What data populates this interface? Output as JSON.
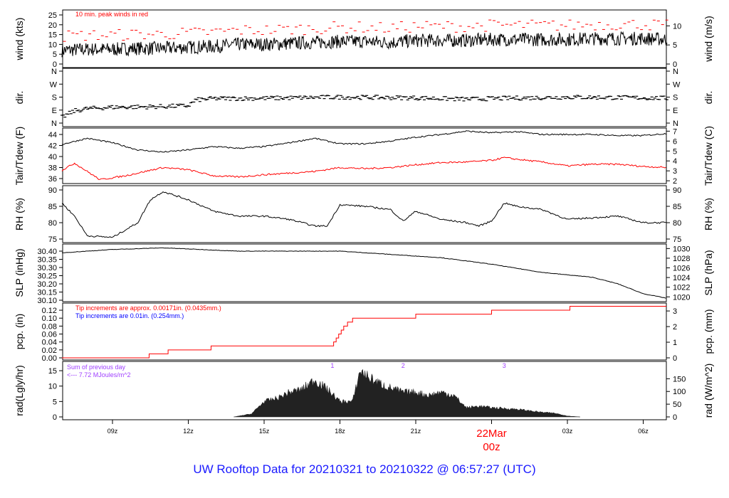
{
  "title": "UW Rooftop Data for 20210321  to  20210322 @ 06:57:27  (UTC)",
  "chart_data": [
    {
      "type": "line",
      "id": "wind",
      "ylabel": "wind (kts)",
      "ylabel_right": "wind (m/s)",
      "ylim": [
        0,
        27
      ],
      "yticks": [
        0,
        5,
        10,
        15,
        20,
        25
      ],
      "yticks_right": [
        0,
        5,
        10
      ],
      "annotation": "10 min. peak winds in red",
      "series": [
        {
          "color": "#000000",
          "hours": [
            7,
            8,
            9,
            10,
            11,
            12,
            13,
            14,
            15,
            16,
            17,
            18,
            19,
            20,
            21,
            22,
            23,
            24,
            25,
            26,
            27,
            28,
            29,
            30,
            31
          ],
          "values": [
            7,
            7.5,
            7.5,
            8,
            8,
            8.5,
            9,
            10,
            10,
            10.5,
            11,
            11.5,
            11.5,
            11,
            12,
            12,
            12,
            12.5,
            12.5,
            12.5,
            12.5,
            13,
            13,
            13,
            12.5
          ]
        },
        {
          "color": "#ff0000",
          "kind": "peak dashes",
          "offset_kts": 6
        }
      ]
    },
    {
      "type": "line",
      "id": "dir",
      "ylabel": "dir.",
      "ylabel_right": "dir.",
      "yticks": [
        "N",
        "E",
        "S",
        "W",
        "N"
      ],
      "ylim": [
        0,
        360
      ],
      "series": [
        {
          "color": "#000000",
          "hours": [
            7,
            7.5,
            8,
            9,
            10,
            11,
            12,
            12.3,
            13,
            15,
            18,
            21,
            23,
            24,
            27,
            30,
            31
          ],
          "values": [
            40,
            85,
            100,
            110,
            112,
            115,
            120,
            160,
            170,
            172,
            180,
            175,
            165,
            170,
            180,
            175,
            172
          ]
        }
      ]
    },
    {
      "type": "line",
      "id": "temp",
      "ylabel": "Tair/Tdew (F)",
      "ylabel_right": "Tair/Tdew (C)",
      "ylim": [
        35,
        45
      ],
      "yticks": [
        36,
        38,
        40,
        42,
        44
      ],
      "yticks_right": [
        2,
        3,
        4,
        5,
        6,
        7
      ],
      "series": [
        {
          "name": "Tair",
          "color": "#000000",
          "hours": [
            7,
            8,
            9,
            10,
            11,
            12,
            13,
            14,
            15,
            16,
            17,
            18,
            19,
            20,
            21,
            22,
            23,
            24,
            25,
            26,
            27,
            28,
            29,
            30,
            31
          ],
          "values": [
            42.2,
            43.3,
            42.5,
            41.2,
            40.8,
            41.2,
            41.8,
            41.5,
            41.8,
            42.5,
            43.3,
            42.3,
            42.3,
            42.8,
            43.5,
            44,
            44.6,
            44.3,
            44.5,
            44,
            44,
            44,
            43.8,
            43.8,
            44.2
          ]
        },
        {
          "name": "Tdew",
          "color": "#ff0000",
          "hours": [
            7,
            7.5,
            8.5,
            9.5,
            10.5,
            11,
            12,
            13,
            14,
            15,
            16,
            17,
            18,
            19,
            20,
            21,
            22,
            23,
            24,
            24.5,
            25,
            26,
            27,
            28,
            29,
            30,
            31
          ],
          "values": [
            37.5,
            38.8,
            35.8,
            36.5,
            37.5,
            38,
            37.6,
            36.5,
            36.3,
            36.7,
            37,
            37.3,
            38,
            37.8,
            38,
            38.5,
            38.9,
            39,
            39.3,
            39.8,
            39.5,
            39,
            38.3,
            38.6,
            38.6,
            38.2,
            38
          ]
        }
      ]
    },
    {
      "type": "line",
      "id": "rh",
      "ylabel": "RH (%)",
      "ylabel_right": "RH (%)",
      "ylim": [
        74,
        91
      ],
      "yticks": [
        75,
        80,
        85,
        90
      ],
      "series": [
        {
          "color": "#000000",
          "hours": [
            7,
            7.5,
            8,
            9,
            10,
            10.5,
            11,
            12,
            13,
            14,
            15,
            16,
            17,
            17.5,
            18,
            19,
            20,
            20.5,
            21,
            22,
            23,
            23.5,
            24,
            24.5,
            25,
            26,
            27,
            28,
            29,
            30,
            31
          ],
          "values": [
            86,
            82,
            76,
            75.5,
            80,
            87,
            89.5,
            87,
            83.5,
            82,
            82,
            81,
            79,
            79,
            85.5,
            85,
            84,
            80.5,
            83.5,
            81,
            80,
            79,
            80.5,
            86,
            85,
            84,
            81,
            81.5,
            82,
            80,
            80
          ]
        }
      ]
    },
    {
      "type": "line",
      "id": "slp",
      "ylabel": "SLP (inHg)",
      "ylabel_right": "SLP (hPa)",
      "ylim": [
        30.1,
        30.42
      ],
      "yticks": [
        30.1,
        30.15,
        30.2,
        30.25,
        30.3,
        30.35,
        30.4
      ],
      "yticks_right": [
        1020,
        1022,
        1024,
        1026,
        1028,
        1030
      ],
      "series": [
        {
          "color": "#000000",
          "hours": [
            7,
            9,
            11,
            14,
            18,
            20,
            22,
            24,
            26,
            28,
            29,
            30,
            31
          ],
          "values": [
            30.39,
            30.41,
            30.42,
            30.4,
            30.4,
            30.38,
            30.36,
            30.32,
            30.27,
            30.24,
            30.2,
            30.14,
            30.11
          ]
        }
      ]
    },
    {
      "type": "step",
      "id": "pcp",
      "ylabel": "pcp. (in)",
      "ylabel_right": "pcp. (mm)",
      "ylim": [
        0,
        0.13
      ],
      "yticks": [
        0,
        0.02,
        0.04,
        0.06,
        0.08,
        0.1,
        0.12
      ],
      "yticks_right": [
        0,
        1,
        2,
        3
      ],
      "annotations": [
        {
          "text": "Tip increments are approx. 0.00171in. (0.0435mm.)",
          "color": "#ff0000"
        },
        {
          "text": "Tip increments are 0.01in. (0.254mm.)",
          "color": "#0000ff"
        }
      ],
      "series": [
        {
          "color": "#ff0000",
          "hours": [
            7,
            10.45,
            11.2,
            12.9,
            17.75,
            17.85,
            17.95,
            18.05,
            18.15,
            18.3,
            18.5,
            21,
            24,
            27.1
          ],
          "values": [
            0,
            0.01,
            0.02,
            0.03,
            0.04,
            0.05,
            0.06,
            0.07,
            0.08,
            0.09,
            0.1,
            0.11,
            0.12,
            0.13
          ]
        }
      ]
    },
    {
      "type": "area",
      "id": "rad",
      "ylabel": "rad(Lgly/hr)",
      "ylabel_right": "rad (W/m^2)",
      "ylim": [
        0,
        17
      ],
      "yticks": [
        0,
        5,
        10,
        15
      ],
      "yticks_right": [
        0,
        50,
        100,
        150
      ],
      "annotations": [
        {
          "text": "Sum of previous day",
          "color": "#a040ff"
        },
        {
          "text": "<--- 7.72 MJoules/m^2",
          "color": "#a040ff"
        }
      ],
      "markers": [
        {
          "label": "1",
          "hour": 17.7
        },
        {
          "label": "2",
          "hour": 20.5
        },
        {
          "label": "3",
          "hour": 24.5
        }
      ],
      "series": [
        {
          "color": "#222222",
          "hours": [
            13.8,
            14.5,
            15,
            15.5,
            16,
            16.5,
            17,
            17.5,
            18,
            18.5,
            18.8,
            19.3,
            19.8,
            20.5,
            21,
            21.5,
            22,
            22.5,
            23,
            23.5,
            24,
            25,
            26,
            26.5,
            27,
            27.5
          ],
          "values": [
            0,
            1,
            5,
            6,
            8,
            9,
            12,
            9,
            5,
            5,
            15,
            12,
            10,
            8,
            8,
            7,
            8,
            7,
            3,
            3.5,
            3,
            2.5,
            1.5,
            1.2,
            0.3,
            0
          ]
        }
      ]
    }
  ],
  "xaxis": {
    "ticks": [
      {
        "hour": 9,
        "label": "09z"
      },
      {
        "hour": 12,
        "label": "12z"
      },
      {
        "hour": 15,
        "label": "15z"
      },
      {
        "hour": 18,
        "label": "18z"
      },
      {
        "hour": 21,
        "label": "21z"
      },
      {
        "hour": 24,
        "label": "22Mar",
        "label2": "00z"
      },
      {
        "hour": 27,
        "label": "03z"
      },
      {
        "hour": 30,
        "label": "06z"
      }
    ],
    "range_hours": [
      7,
      30.95
    ]
  }
}
